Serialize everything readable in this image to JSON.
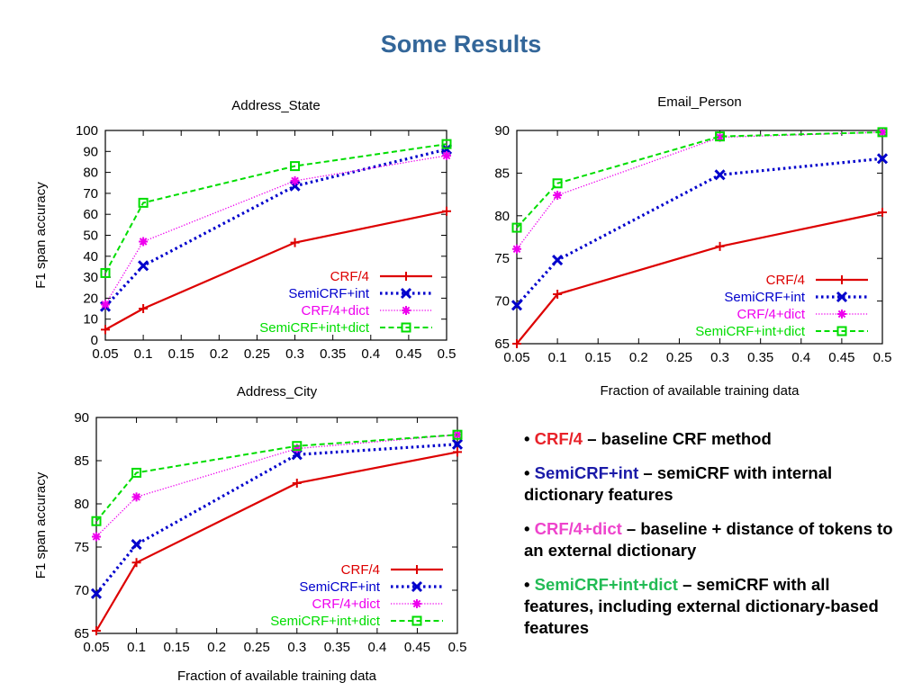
{
  "slide": {
    "title": "Some Results"
  },
  "colors": {
    "CRF/4": "#dd0000",
    "SemiCRF+int": "#0000cc",
    "CRF/4+dict": "#ee00ee",
    "SemiCRF+int+dict": "#00dd00"
  },
  "chart_data": [
    {
      "id": "address-state",
      "type": "line",
      "title": "Address_State",
      "xlabel": "",
      "ylabel": "F1 span accuracy",
      "x": [
        0.05,
        0.1,
        0.3,
        0.5
      ],
      "xlim": [
        0.05,
        0.5
      ],
      "ylim": [
        0,
        100
      ],
      "xticks": [
        "0.05",
        "0.1",
        "0.15",
        "0.2",
        "0.25",
        "0.3",
        "0.35",
        "0.4",
        "0.45",
        "0.5"
      ],
      "yticks": [
        "0",
        "10",
        "20",
        "30",
        "40",
        "50",
        "60",
        "70",
        "80",
        "90",
        "100"
      ],
      "legend": "bottom-right",
      "grid": false,
      "series": [
        {
          "name": "CRF/4",
          "values": [
            5,
            15,
            46.5,
            61.5
          ]
        },
        {
          "name": "SemiCRF+int",
          "values": [
            16,
            35.5,
            73.5,
            91
          ]
        },
        {
          "name": "CRF/4+dict",
          "values": [
            17,
            47,
            76,
            88
          ]
        },
        {
          "name": "SemiCRF+int+dict",
          "values": [
            32,
            65.5,
            83,
            93.5
          ]
        }
      ]
    },
    {
      "id": "email-person",
      "type": "line",
      "title": "Email_Person",
      "xlabel": "Fraction of available training data",
      "ylabel": "",
      "x": [
        0.05,
        0.1,
        0.3,
        0.5
      ],
      "xlim": [
        0.05,
        0.5
      ],
      "ylim": [
        65,
        90
      ],
      "xticks": [
        "0.05",
        "0.1",
        "0.15",
        "0.2",
        "0.25",
        "0.3",
        "0.35",
        "0.4",
        "0.45",
        "0.5"
      ],
      "yticks": [
        "65",
        "70",
        "75",
        "80",
        "85",
        "90"
      ],
      "legend": "bottom-right",
      "grid": false,
      "series": [
        {
          "name": "CRF/4",
          "values": [
            65,
            70.8,
            76.4,
            80.4
          ]
        },
        {
          "name": "SemiCRF+int",
          "values": [
            69.5,
            74.8,
            84.8,
            86.7
          ]
        },
        {
          "name": "CRF/4+dict",
          "values": [
            76.1,
            82.4,
            89.2,
            89.8
          ]
        },
        {
          "name": "SemiCRF+int+dict",
          "values": [
            78.6,
            83.8,
            89.3,
            89.8
          ]
        }
      ]
    },
    {
      "id": "address-city",
      "type": "line",
      "title": "Address_City",
      "xlabel": "Fraction of available training data",
      "ylabel": "F1 span accuracy",
      "x": [
        0.05,
        0.1,
        0.3,
        0.5
      ],
      "xlim": [
        0.05,
        0.5
      ],
      "ylim": [
        65,
        90
      ],
      "xticks": [
        "0.05",
        "0.1",
        "0.15",
        "0.2",
        "0.25",
        "0.3",
        "0.35",
        "0.4",
        "0.45",
        "0.5"
      ],
      "yticks": [
        "65",
        "70",
        "75",
        "80",
        "85",
        "90"
      ],
      "legend": "bottom-right",
      "grid": false,
      "series": [
        {
          "name": "CRF/4",
          "values": [
            65.3,
            73.2,
            82.4,
            86
          ]
        },
        {
          "name": "SemiCRF+int",
          "values": [
            69.6,
            75.3,
            85.7,
            86.9
          ]
        },
        {
          "name": "CRF/4+dict",
          "values": [
            76.2,
            80.8,
            86.4,
            88
          ]
        },
        {
          "name": "SemiCRF+int+dict",
          "values": [
            78,
            83.6,
            86.7,
            88
          ]
        }
      ]
    }
  ],
  "notes": [
    {
      "term": "CRF/4",
      "text": " – baseline CRF method"
    },
    {
      "term": "SemiCRF+int",
      "text": " – semiCRF with internal dictionary features"
    },
    {
      "term": "CRF/4+dict",
      "text": " – baseline + distance of tokens to an external dictionary"
    },
    {
      "term": "SemiCRF+int+dict",
      "text": " – semiCRF with all features, including external dictionary-based features"
    }
  ]
}
